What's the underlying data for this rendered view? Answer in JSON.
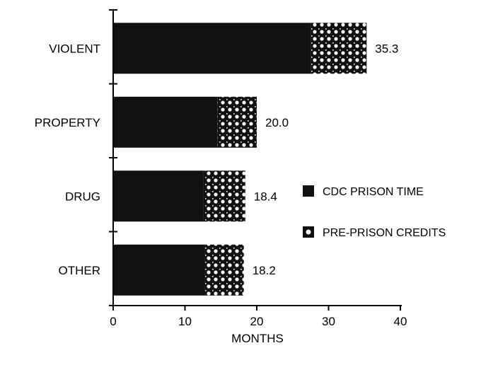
{
  "chart_data": {
    "type": "bar",
    "orientation": "horizontal",
    "stacked": true,
    "categories": [
      "VIOLENT",
      "PROPERTY",
      "DRUG",
      "OTHER"
    ],
    "series": [
      {
        "name": "CDC PRISON TIME",
        "values": [
          27.5,
          14.5,
          12.6,
          12.8
        ],
        "color": "#111111",
        "pattern": "solid"
      },
      {
        "name": "PRE-PRISON CREDITS",
        "values": [
          7.8,
          5.5,
          5.8,
          5.4
        ],
        "color": "#111111",
        "pattern": "checkered"
      }
    ],
    "totals": [
      "35.3",
      "20.0",
      "18.4",
      "18.2"
    ],
    "xlabel": "MONTHS",
    "xlim": [
      0,
      40
    ],
    "xticks": [
      "0",
      "10",
      "20",
      "30",
      "40"
    ],
    "legend": "right",
    "grid": false
  }
}
